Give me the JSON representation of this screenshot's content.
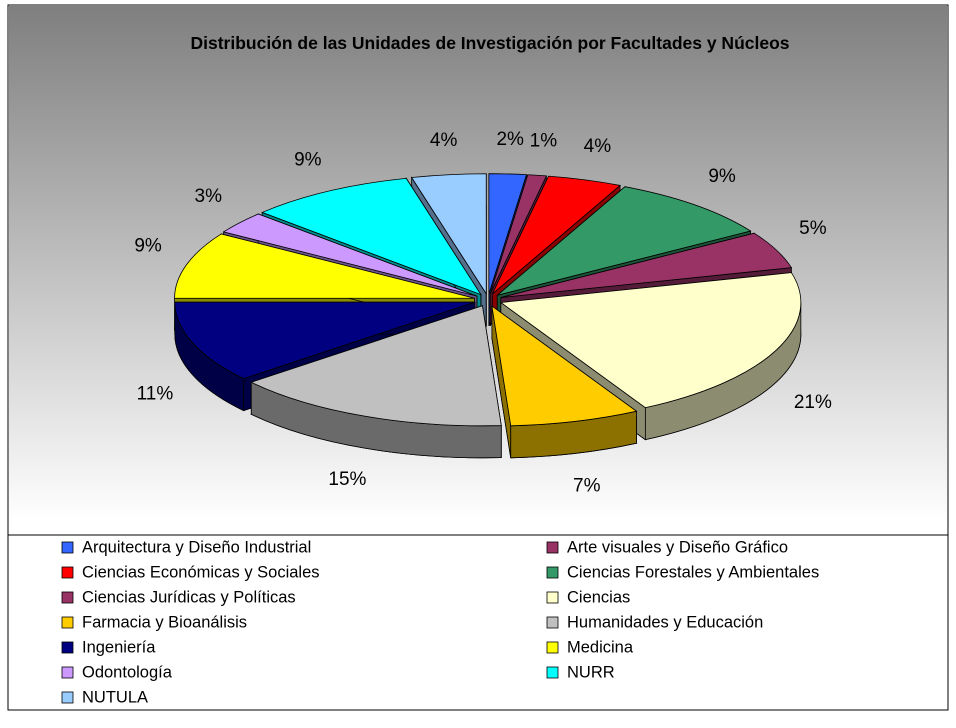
{
  "chart_data": {
    "type": "pie",
    "title": "Distribución de las Unidades de Investigación por Facultades y Núcleos",
    "categories": [
      "Arquitectura y Diseño Industrial",
      "Arte visuales y Diseño Gráfico",
      "Ciencias Económicas y Sociales",
      "Ciencias Forestales y Ambientales",
      "Ciencias Jurídicas y Políticas",
      "Ciencias",
      "Farmacia y Bioanálisis",
      "Humanidades  y Educación",
      "Ingeniería",
      "Medicina",
      "Odontología",
      "NURR",
      "NUTULA"
    ],
    "values": [
      2,
      1,
      4,
      9,
      5,
      21,
      7,
      15,
      11,
      9,
      3,
      9,
      4
    ],
    "value_labels": [
      "2%",
      "1%",
      "4%",
      "9%",
      "5%",
      "21%",
      "7%",
      "15%",
      "11%",
      "9%",
      "3%",
      "9%",
      "4%"
    ],
    "colors": [
      "#3366ff",
      "#993366",
      "#ff0000",
      "#339966",
      "#993366",
      "#ffffcc",
      "#ffcc00",
      "#c0c0c0",
      "#000080",
      "#ffff00",
      "#cc99ff",
      "#00ffff",
      "#99ccff"
    ],
    "legend": "bottom"
  }
}
